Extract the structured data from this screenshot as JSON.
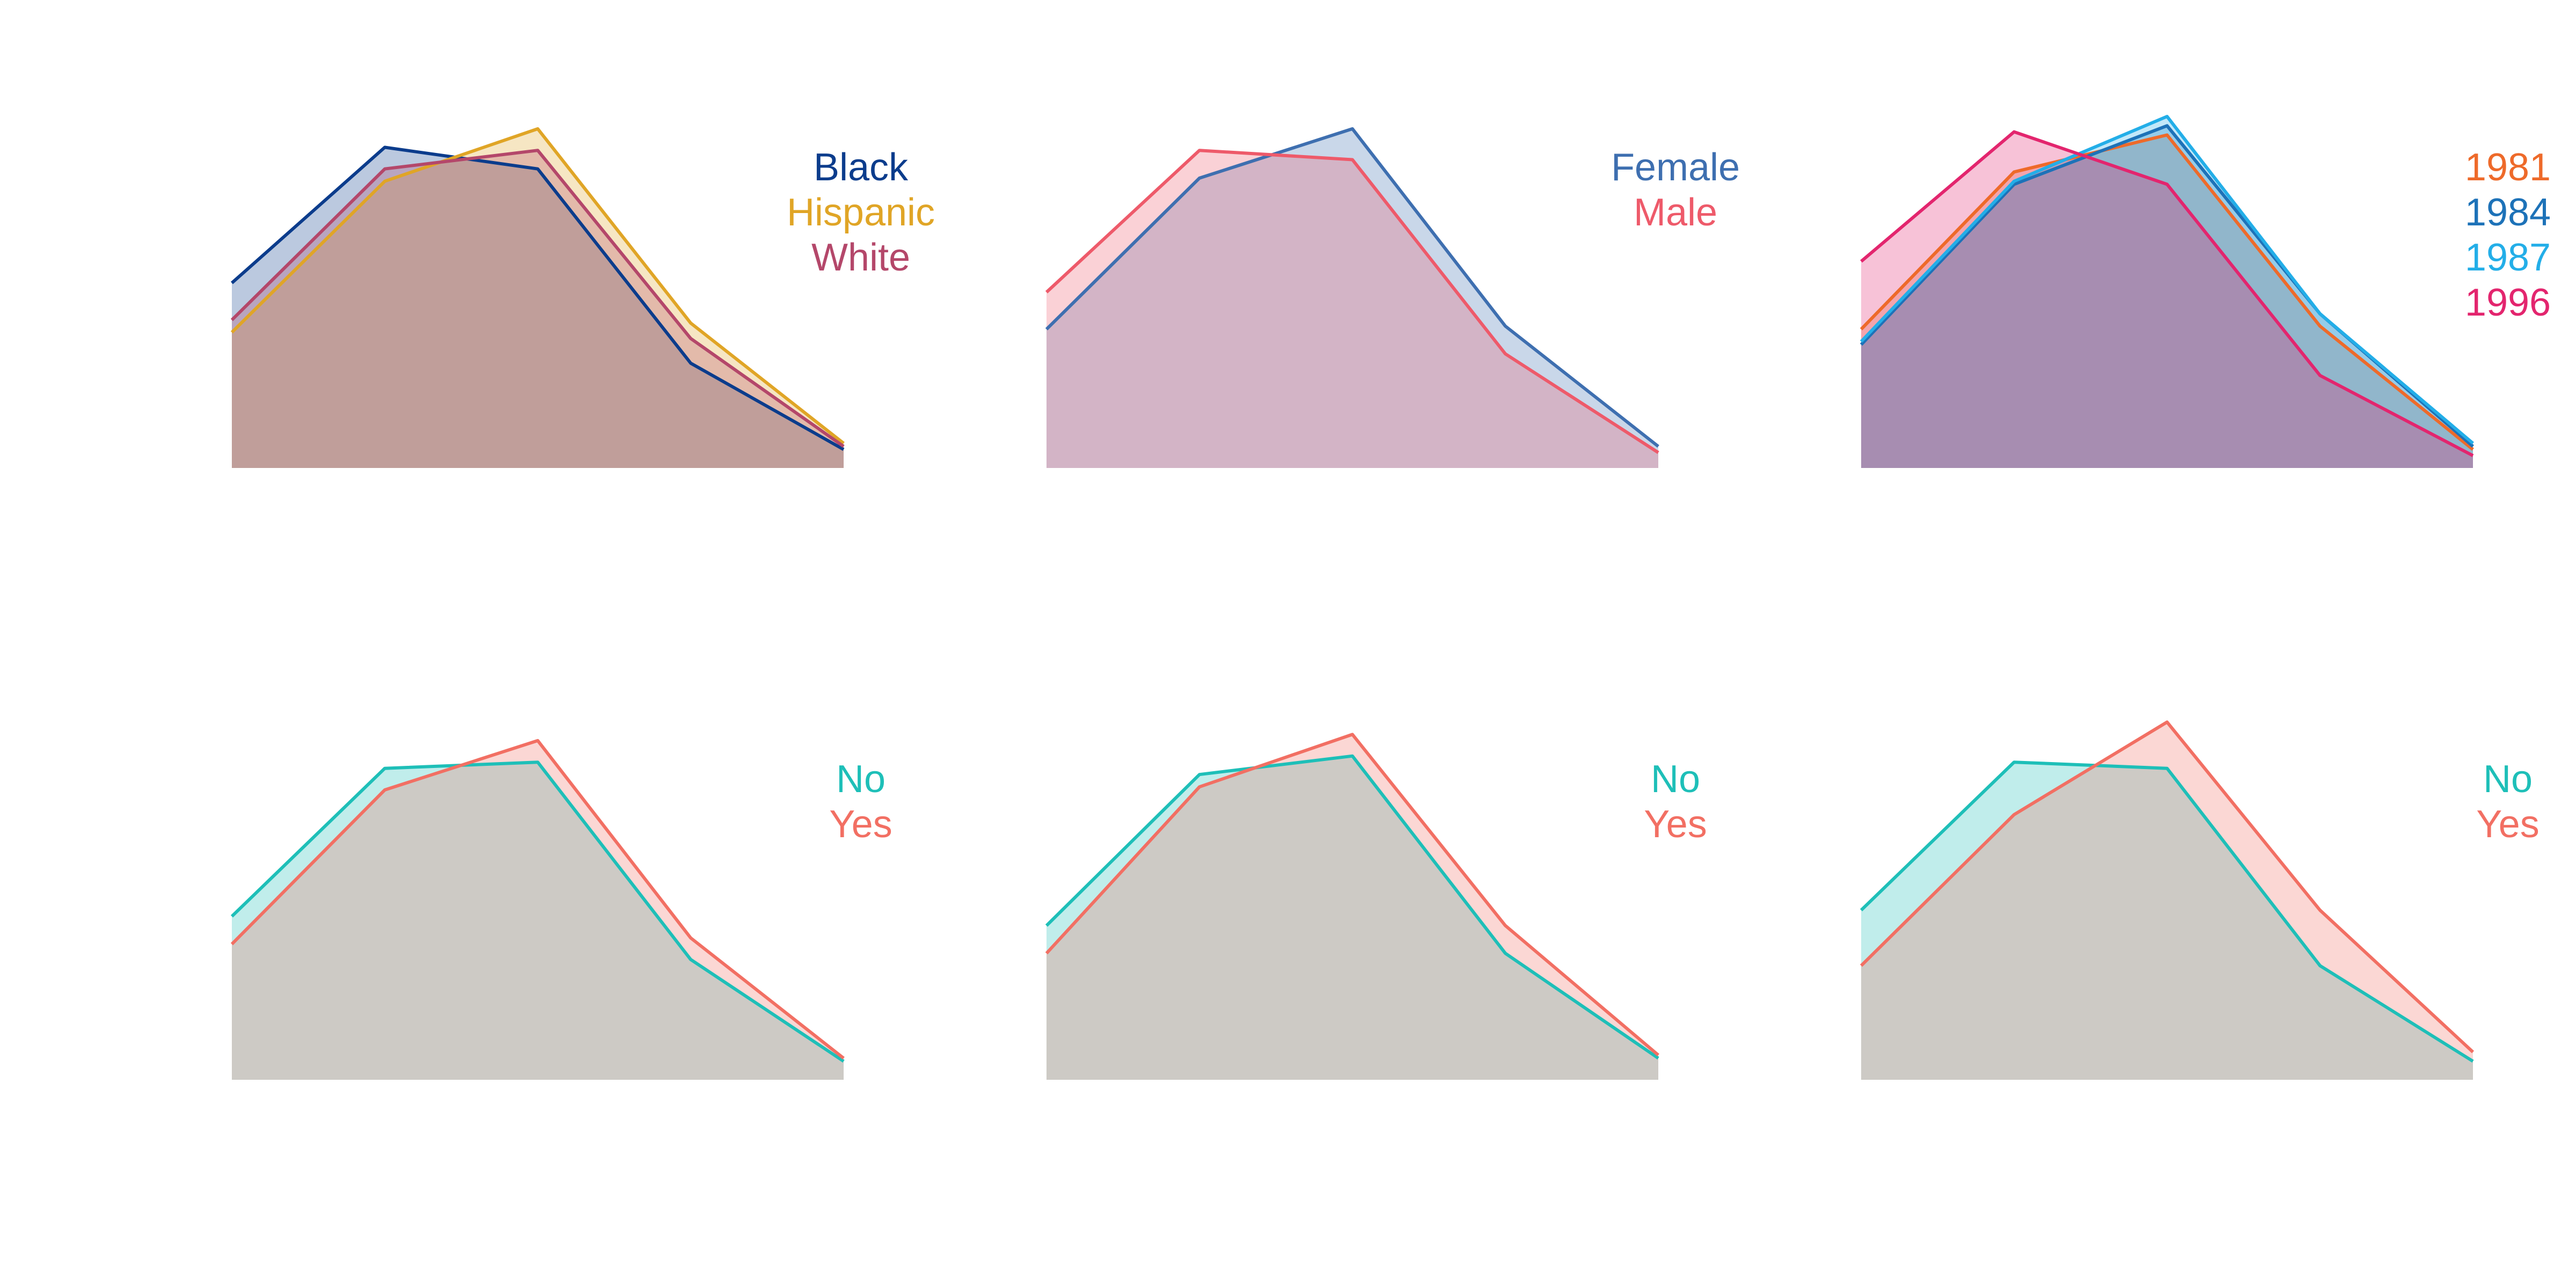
{
  "chart_data": [
    {
      "type": "area",
      "x": [
        1,
        2,
        3,
        4,
        5
      ],
      "ylim": [
        0,
        1.1
      ],
      "grid": false,
      "legend_position": "top-right",
      "series": [
        {
          "name": "Black",
          "color": "#0B3C8C",
          "values": [
            0.6,
            1.04,
            0.97,
            0.34,
            0.06
          ]
        },
        {
          "name": "Hispanic",
          "color": "#E0A526",
          "values": [
            0.44,
            0.93,
            1.1,
            0.47,
            0.08
          ]
        },
        {
          "name": "White",
          "color": "#B4476A",
          "values": [
            0.48,
            0.97,
            1.03,
            0.42,
            0.07
          ]
        }
      ]
    },
    {
      "type": "area",
      "x": [
        1,
        2,
        3,
        4,
        5
      ],
      "ylim": [
        0,
        1.1
      ],
      "grid": false,
      "legend_position": "top-right",
      "series": [
        {
          "name": "Female",
          "color": "#3E6FB0",
          "values": [
            0.45,
            0.94,
            1.1,
            0.46,
            0.07
          ]
        },
        {
          "name": "Male",
          "color": "#EE5A6A",
          "values": [
            0.57,
            1.03,
            1.0,
            0.37,
            0.05
          ]
        }
      ]
    },
    {
      "type": "area",
      "x": [
        1,
        2,
        3,
        4,
        5
      ],
      "ylim": [
        0,
        1.1
      ],
      "grid": false,
      "legend_position": "top-right",
      "series": [
        {
          "name": "1981",
          "color": "#EE6A2A",
          "values": [
            0.45,
            0.96,
            1.08,
            0.46,
            0.06
          ]
        },
        {
          "name": "1984",
          "color": "#1D72B8",
          "values": [
            0.4,
            0.92,
            1.11,
            0.5,
            0.07
          ]
        },
        {
          "name": "1987",
          "color": "#23AEE8",
          "values": [
            0.41,
            0.93,
            1.14,
            0.5,
            0.08
          ]
        },
        {
          "name": "1996",
          "color": "#E3256E",
          "values": [
            0.67,
            1.09,
            0.92,
            0.3,
            0.04
          ]
        }
      ]
    },
    {
      "type": "area",
      "x": [
        1,
        2,
        3,
        4,
        5
      ],
      "ylim": [
        0,
        1.1
      ],
      "grid": false,
      "legend_position": "top-right",
      "series": [
        {
          "name": "No",
          "color": "#1EBFB8",
          "values": [
            0.53,
            1.01,
            1.03,
            0.39,
            0.06
          ]
        },
        {
          "name": "Yes",
          "color": "#F26F63",
          "values": [
            0.44,
            0.94,
            1.1,
            0.46,
            0.07
          ]
        }
      ]
    },
    {
      "type": "area",
      "x": [
        1,
        2,
        3,
        4,
        5
      ],
      "ylim": [
        0,
        1.1
      ],
      "grid": false,
      "legend_position": "top-right",
      "series": [
        {
          "name": "No",
          "color": "#1EBFB8",
          "values": [
            0.5,
            0.99,
            1.05,
            0.41,
            0.07
          ]
        },
        {
          "name": "Yes",
          "color": "#F26F63",
          "values": [
            0.41,
            0.95,
            1.12,
            0.5,
            0.08
          ]
        }
      ]
    },
    {
      "type": "area",
      "x": [
        1,
        2,
        3,
        4,
        5
      ],
      "ylim": [
        0,
        1.1
      ],
      "grid": false,
      "legend_position": "top-right",
      "series": [
        {
          "name": "No",
          "color": "#1EBFB8",
          "values": [
            0.55,
            1.03,
            1.01,
            0.37,
            0.06
          ]
        },
        {
          "name": "Yes",
          "color": "#F26F63",
          "values": [
            0.37,
            0.86,
            1.16,
            0.55,
            0.09
          ]
        }
      ]
    }
  ]
}
